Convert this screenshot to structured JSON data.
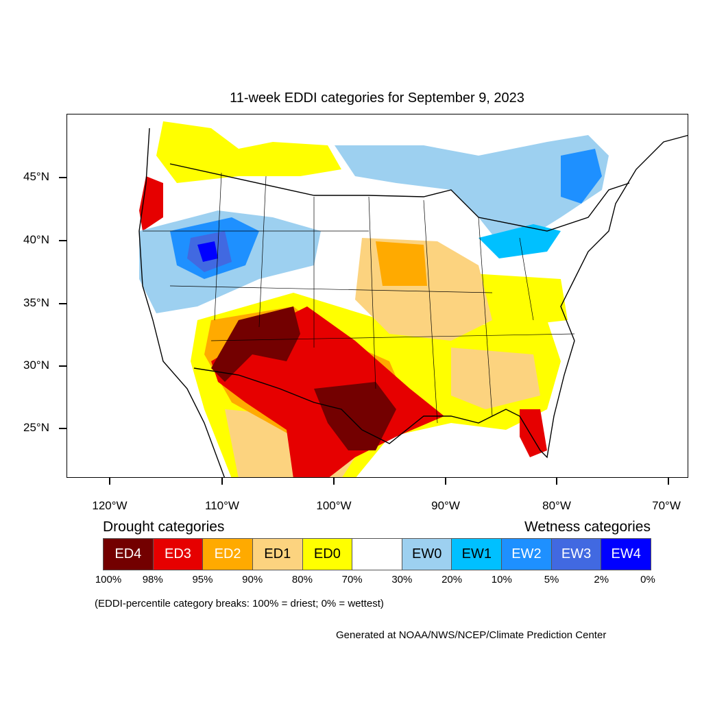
{
  "title": "11-week EDDI categories for September 9, 2023",
  "latitude_labels": [
    "45°N",
    "40°N",
    "35°N",
    "30°N",
    "25°N"
  ],
  "longitude_labels": [
    "120°W",
    "110°W",
    "100°W",
    "90°W",
    "80°W",
    "70°W"
  ],
  "legend": {
    "drought_heading": "Drought categories",
    "wetness_heading": "Wetness categories",
    "categories": [
      {
        "label": "ED4",
        "color": "#730000",
        "text_color": "#ffffff"
      },
      {
        "label": "ED3",
        "color": "#e60000",
        "text_color": "#ffffff"
      },
      {
        "label": "ED2",
        "color": "#ffaa00",
        "text_color": "#ffffff"
      },
      {
        "label": "ED1",
        "color": "#fcd37f",
        "text_color": "#000000"
      },
      {
        "label": "ED0",
        "color": "#ffff00",
        "text_color": "#000000"
      },
      {
        "label": "",
        "color": "#ffffff",
        "text_color": "#000000"
      },
      {
        "label": "EW0",
        "color": "#9dd0f0",
        "text_color": "#000000"
      },
      {
        "label": "EW1",
        "color": "#00c0ff",
        "text_color": "#000000"
      },
      {
        "label": "EW2",
        "color": "#1e90ff",
        "text_color": "#ffffff"
      },
      {
        "label": "EW3",
        "color": "#4169e1",
        "text_color": "#ffffff"
      },
      {
        "label": "EW4",
        "color": "#0000ff",
        "text_color": "#ffffff"
      }
    ],
    "percent_breaks": [
      "100%",
      "98%",
      "95%",
      "90%",
      "80%",
      "70%",
      "30%",
      "20%",
      "10%",
      "5%",
      "2%",
      "0%"
    ]
  },
  "note": "(EDDI-percentile category breaks: 100% = driest; 0% = wettest)",
  "credit": "Generated at NOAA/NWS/NCEP/Climate Prediction Center"
}
